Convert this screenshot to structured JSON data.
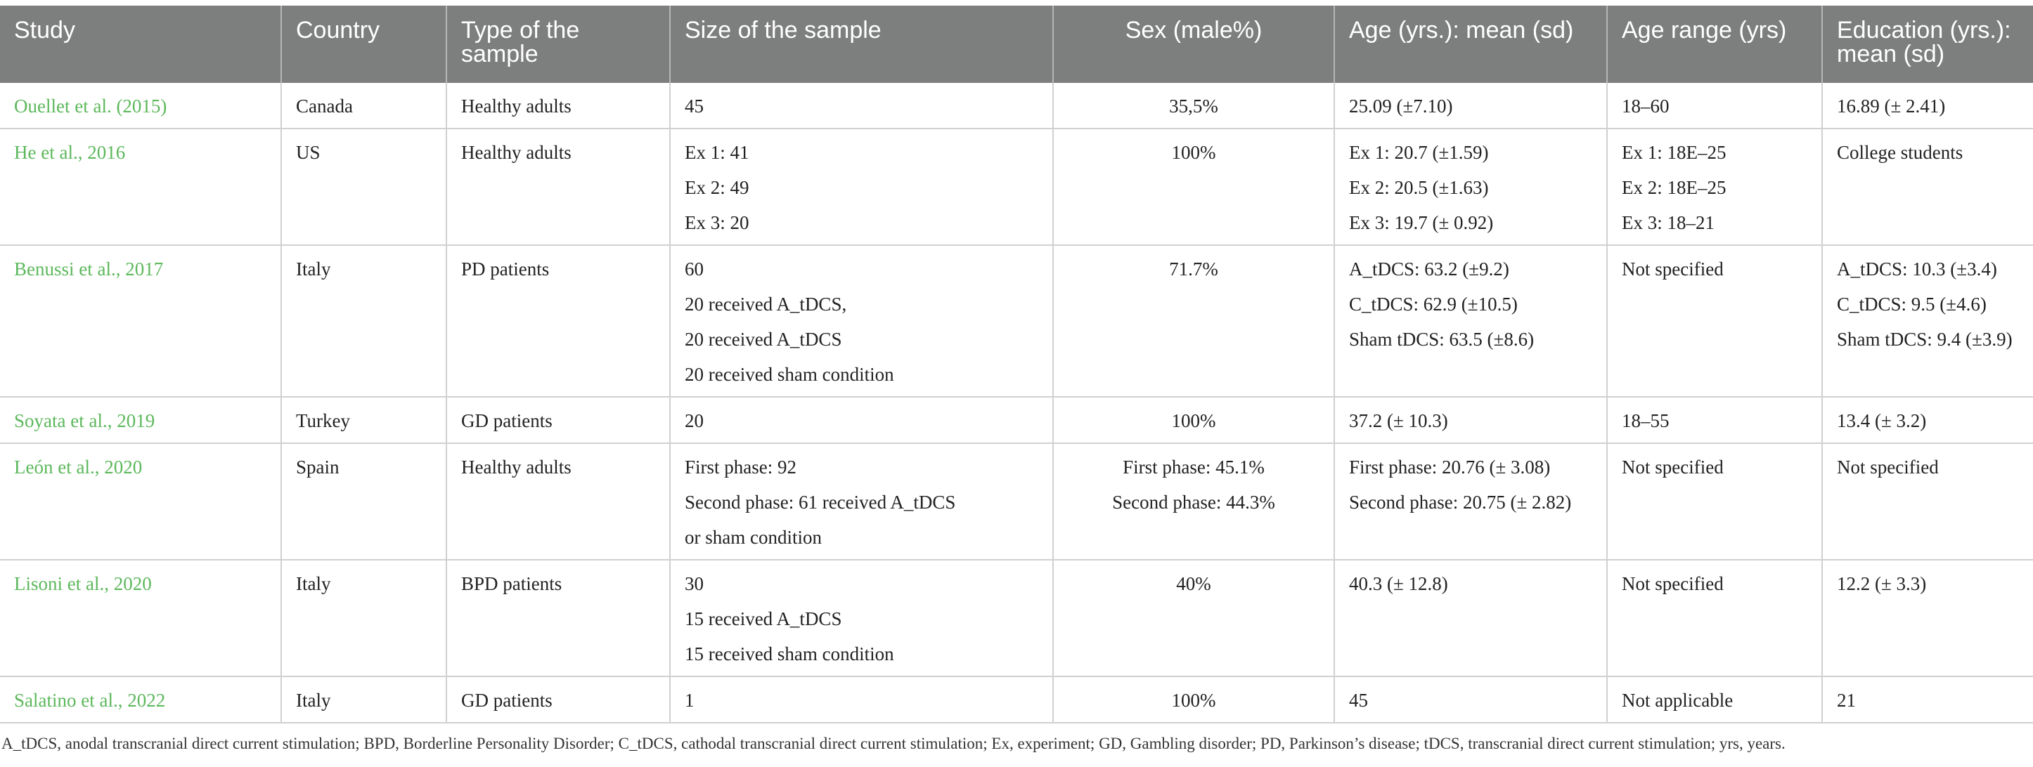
{
  "headers": [
    "Study",
    "Country",
    "Type of the sample",
    "Size of the sample",
    "Sex (male%)",
    "Age (yrs.): mean (sd)",
    "Age range (yrs)",
    "Education (yrs.): mean (sd)"
  ],
  "rows": [
    {
      "study": "Ouellet et al. (2015)",
      "country": "Canada",
      "type": "Healthy adults",
      "size": [
        "45"
      ],
      "sex": [
        "35,5%"
      ],
      "age": [
        "25.09 (±7.10)"
      ],
      "range": [
        "18–60"
      ],
      "education": [
        "16.89 (± 2.41)"
      ]
    },
    {
      "study": "He et al., 2016",
      "country": "US",
      "type": "Healthy adults",
      "size": [
        "Ex 1: 41",
        "Ex 2: 49",
        "Ex 3: 20"
      ],
      "sex": [
        "100%"
      ],
      "age": [
        "Ex 1: 20.7 (±1.59)",
        "Ex 2: 20.5 (±1.63)",
        "Ex 3: 19.7 (± 0.92)"
      ],
      "range": [
        "Ex 1: 18E–25",
        "Ex 2: 18E–25",
        "Ex 3: 18–21"
      ],
      "education": [
        "College students"
      ]
    },
    {
      "study": "Benussi et al., 2017",
      "country": "Italy",
      "type": "PD patients",
      "size": [
        "60",
        "20 received A_tDCS,",
        "20 received A_tDCS",
        "20 received sham condition"
      ],
      "sex": [
        "71.7%"
      ],
      "age": [
        "A_tDCS: 63.2 (±9.2)",
        "C_tDCS: 62.9 (±10.5)",
        "Sham tDCS: 63.5 (±8.6)"
      ],
      "range": [
        "Not specified"
      ],
      "education": [
        "A_tDCS: 10.3 (±3.4)",
        "C_tDCS: 9.5 (±4.6)",
        "Sham tDCS: 9.4 (±3.9)"
      ]
    },
    {
      "study": "Soyata et al., 2019",
      "country": "Turkey",
      "type": "GD patients",
      "size": [
        "20"
      ],
      "sex": [
        "100%"
      ],
      "age": [
        "37.2 (± 10.3)"
      ],
      "range": [
        "18–55"
      ],
      "education": [
        "13.4 (± 3.2)"
      ]
    },
    {
      "study": "León et al., 2020",
      "country": "Spain",
      "type": "Healthy adults",
      "size": [
        "First phase: 92",
        "Second phase: 61 received A_tDCS",
        "or sham condition"
      ],
      "sex": [
        "First phase: 45.1%",
        "Second phase: 44.3%"
      ],
      "age": [
        "First phase: 20.76 (± 3.08)",
        "Second phase: 20.75 (± 2.82)"
      ],
      "range": [
        "Not specified"
      ],
      "education": [
        "Not specified"
      ]
    },
    {
      "study": "Lisoni et al., 2020",
      "country": "Italy",
      "type": "BPD patients",
      "size": [
        "30",
        "15 received A_tDCS",
        "15 received sham condition"
      ],
      "sex": [
        "40%"
      ],
      "age": [
        "40.3 (± 12.8)"
      ],
      "range": [
        "Not specified"
      ],
      "education": [
        "12.2 (± 3.3)"
      ]
    },
    {
      "study": "Salatino et al., 2022",
      "country": "Italy",
      "type": "GD patients",
      "size": [
        "1"
      ],
      "sex": [
        "100%"
      ],
      "age": [
        "45"
      ],
      "range": [
        "Not applicable"
      ],
      "education": [
        "21"
      ]
    }
  ],
  "footnote": "A_tDCS, anodal transcranial direct current stimulation; BPD, Borderline Personality Disorder; C_tDCS, cathodal transcranial direct current stimulation; Ex, experiment; GD, Gambling disorder; PD, Parkinson’s disease; tDCS, transcranial direct current stimulation; yrs, years.",
  "colors": {
    "header_bg": "#7d7f7e",
    "study_link": "#5cb85c"
  }
}
